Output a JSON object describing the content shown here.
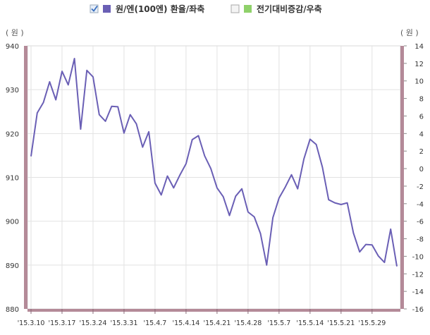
{
  "legend": {
    "items": [
      {
        "label": "원/엔(100엔) 환율/좌축",
        "checked": true,
        "color": "#6a5fb5"
      },
      {
        "label": "전기대비증감/우축",
        "checked": false,
        "color": "#8fd16a"
      }
    ]
  },
  "chart_data": {
    "type": "line",
    "left_unit": "( 원 )",
    "right_unit": "( 원 )",
    "y_left_lim": [
      880,
      940
    ],
    "y_left_ticks": [
      "940",
      "930",
      "920",
      "910",
      "900",
      "890",
      "880"
    ],
    "y_right_lim": [
      -16,
      14
    ],
    "y_right_ticks": [
      "14",
      "12",
      "10",
      "8",
      "6",
      "4",
      "2",
      "0",
      "-2",
      "-4",
      "-6",
      "-8",
      "-10",
      "-12",
      "-14",
      "-16"
    ],
    "x_tick_labels": [
      "'15.3.10",
      "'15.3.17",
      "'15.3.24",
      "'15.3.31",
      "'15.4.7",
      "'15.4.14",
      "'15.4.21",
      "'15.4.28",
      "'15.5.7",
      "'15.5.14",
      "'15.5.21",
      "'15.5.29"
    ],
    "x_tick_index": [
      0,
      5,
      10,
      15,
      20,
      25,
      30,
      35,
      40,
      45,
      50,
      55
    ],
    "grid": true,
    "legend_position": "top-center",
    "line_color": "#6a5fb5",
    "series": [
      {
        "name": "원/엔(100엔) 환율/좌축",
        "values": [
          914.8,
          924.7,
          927.1,
          931.8,
          927.7,
          934.2,
          931.1,
          937.1,
          921.0,
          934.4,
          932.9,
          924.3,
          922.8,
          926.2,
          926.1,
          920.1,
          924.3,
          922.2,
          916.9,
          920.4,
          908.7,
          906.0,
          910.3,
          907.6,
          910.5,
          913.1,
          918.6,
          919.5,
          914.9,
          912.0,
          907.6,
          905.6,
          901.3,
          905.7,
          907.4,
          902.1,
          901.0,
          897.2,
          890.0,
          900.8,
          905.3,
          907.8,
          910.6,
          907.4,
          914.2,
          918.7,
          917.5,
          912.3,
          904.9,
          904.2,
          903.8,
          904.2,
          897.3,
          893.0,
          894.7,
          894.6,
          892.1,
          890.6,
          898.2,
          889.7
        ]
      }
    ]
  }
}
